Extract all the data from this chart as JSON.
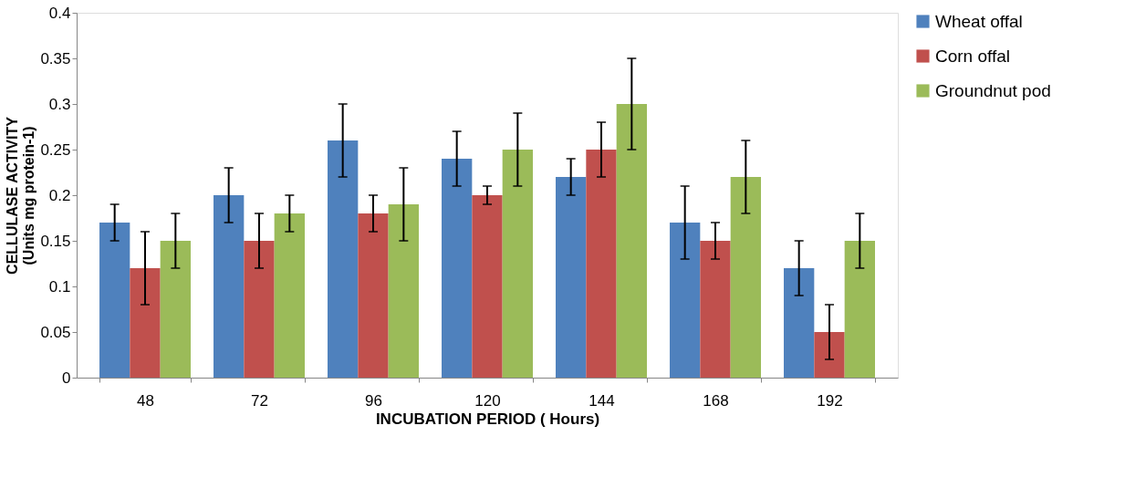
{
  "chart_data": {
    "type": "bar",
    "xlabel": "INCUBATION  PERIOD ( Hours)",
    "ylabel": "CELLULASE ACTIVITY\n(Units mg protein-1)",
    "categories": [
      "48",
      "72",
      "96",
      "120",
      "144",
      "168",
      "192"
    ],
    "series": [
      {
        "name": "Wheat offal",
        "color": "#4f81bd",
        "values": [
          0.17,
          0.2,
          0.26,
          0.24,
          0.22,
          0.17,
          0.12
        ],
        "errors": [
          0.02,
          0.03,
          0.04,
          0.03,
          0.02,
          0.04,
          0.03
        ]
      },
      {
        "name": "Corn offal",
        "color": "#c0504d",
        "values": [
          0.12,
          0.15,
          0.18,
          0.2,
          0.25,
          0.15,
          0.05
        ],
        "errors": [
          0.04,
          0.03,
          0.02,
          0.01,
          0.03,
          0.02,
          0.03
        ]
      },
      {
        "name": "Groundnut pod",
        "color": "#9bbb59",
        "values": [
          0.15,
          0.18,
          0.19,
          0.25,
          0.3,
          0.22,
          0.15
        ],
        "errors": [
          0.03,
          0.02,
          0.04,
          0.04,
          0.05,
          0.04,
          0.03
        ]
      }
    ],
    "ylim": [
      0,
      0.4
    ],
    "yticks": [
      0,
      0.05,
      0.1,
      0.15,
      0.2,
      0.25,
      0.3,
      0.35,
      0.4
    ],
    "legend": "right"
  }
}
